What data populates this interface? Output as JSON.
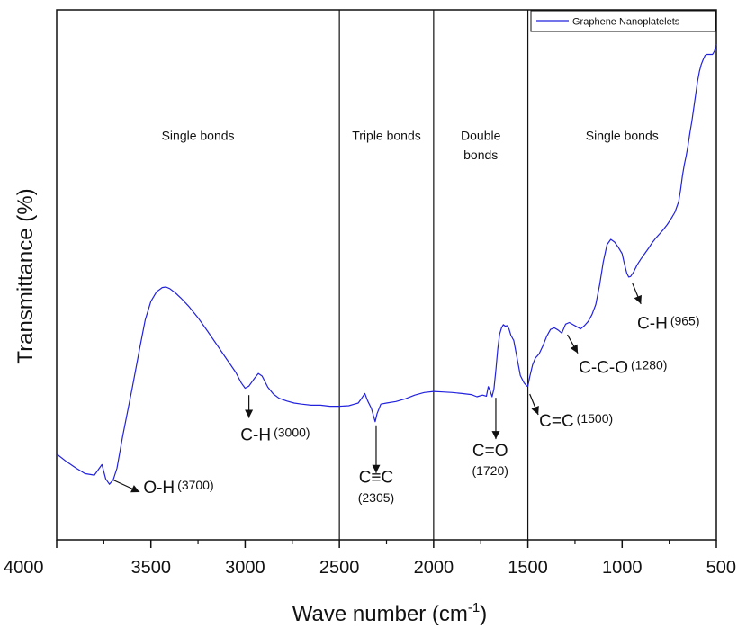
{
  "chart_data": {
    "type": "line",
    "xlabel_main": "Wave number (cm",
    "xlabel_sup": "-1",
    "xlabel_close": ")",
    "ylabel": "Transmittance (%)",
    "xlim": [
      4000,
      500
    ],
    "x_reversed": true,
    "ylim": [
      0,
      100
    ],
    "y_ticks_labeled": false,
    "grid": false,
    "legend_position": "top-right",
    "x_ticks": [
      "4000",
      "3500",
      "3000",
      "2500",
      "2000",
      "1500",
      "1000",
      "500"
    ],
    "series": [
      {
        "name": "Graphene Nanoplatelets",
        "color": "#2222dd",
        "points": [
          [
            4000,
            16.2
          ],
          [
            3950,
            14.8
          ],
          [
            3900,
            13.6
          ],
          [
            3850,
            12.5
          ],
          [
            3800,
            12.2
          ],
          [
            3760,
            14.2
          ],
          [
            3740,
            11.5
          ],
          [
            3720,
            10.5
          ],
          [
            3700,
            11.3
          ],
          [
            3680,
            13.5
          ],
          [
            3650,
            19.5
          ],
          [
            3600,
            28.5
          ],
          [
            3560,
            36.0
          ],
          [
            3530,
            41.5
          ],
          [
            3500,
            45.0
          ],
          [
            3470,
            46.8
          ],
          [
            3440,
            47.6
          ],
          [
            3420,
            47.7
          ],
          [
            3400,
            47.4
          ],
          [
            3370,
            46.6
          ],
          [
            3340,
            45.6
          ],
          [
            3300,
            44.1
          ],
          [
            3250,
            41.9
          ],
          [
            3200,
            39.4
          ],
          [
            3150,
            36.8
          ],
          [
            3100,
            34.2
          ],
          [
            3050,
            31.6
          ],
          [
            3020,
            29.6
          ],
          [
            3000,
            28.6
          ],
          [
            2980,
            29.0
          ],
          [
            2950,
            30.5
          ],
          [
            2930,
            31.4
          ],
          [
            2910,
            30.9
          ],
          [
            2880,
            28.8
          ],
          [
            2850,
            27.5
          ],
          [
            2820,
            26.7
          ],
          [
            2780,
            26.2
          ],
          [
            2740,
            25.8
          ],
          [
            2700,
            25.6
          ],
          [
            2650,
            25.4
          ],
          [
            2600,
            25.4
          ],
          [
            2550,
            25.2
          ],
          [
            2500,
            25.2
          ],
          [
            2450,
            25.3
          ],
          [
            2420,
            25.6
          ],
          [
            2400,
            25.8
          ],
          [
            2380,
            26.8
          ],
          [
            2365,
            27.6
          ],
          [
            2350,
            26.2
          ],
          [
            2330,
            24.8
          ],
          [
            2310,
            22.3
          ],
          [
            2300,
            23.8
          ],
          [
            2280,
            25.6
          ],
          [
            2250,
            25.8
          ],
          [
            2200,
            26.1
          ],
          [
            2150,
            26.6
          ],
          [
            2100,
            27.3
          ],
          [
            2050,
            27.8
          ],
          [
            2000,
            28.0
          ],
          [
            1950,
            27.9
          ],
          [
            1900,
            27.8
          ],
          [
            1850,
            27.6
          ],
          [
            1800,
            27.4
          ],
          [
            1770,
            27.0
          ],
          [
            1740,
            27.3
          ],
          [
            1720,
            27.1
          ],
          [
            1710,
            28.9
          ],
          [
            1700,
            28.1
          ],
          [
            1690,
            27.0
          ],
          [
            1680,
            28.5
          ],
          [
            1670,
            32.0
          ],
          [
            1660,
            36.0
          ],
          [
            1650,
            38.8
          ],
          [
            1640,
            40.0
          ],
          [
            1630,
            40.6
          ],
          [
            1620,
            40.3
          ],
          [
            1610,
            40.4
          ],
          [
            1600,
            39.8
          ],
          [
            1590,
            38.6
          ],
          [
            1575,
            37.6
          ],
          [
            1560,
            34.8
          ],
          [
            1540,
            31.0
          ],
          [
            1520,
            29.6
          ],
          [
            1505,
            29.0
          ],
          [
            1500,
            29.0
          ],
          [
            1490,
            30.8
          ],
          [
            1475,
            33.0
          ],
          [
            1460,
            34.3
          ],
          [
            1440,
            35.1
          ],
          [
            1420,
            36.6
          ],
          [
            1400,
            38.4
          ],
          [
            1380,
            39.7
          ],
          [
            1360,
            40.0
          ],
          [
            1340,
            39.6
          ],
          [
            1320,
            39.0
          ],
          [
            1300,
            40.7
          ],
          [
            1280,
            41.0
          ],
          [
            1260,
            40.6
          ],
          [
            1240,
            40.2
          ],
          [
            1220,
            39.8
          ],
          [
            1200,
            40.4
          ],
          [
            1180,
            41.2
          ],
          [
            1160,
            42.5
          ],
          [
            1140,
            44.4
          ],
          [
            1120,
            48.0
          ],
          [
            1100,
            52.4
          ],
          [
            1080,
            55.7
          ],
          [
            1060,
            56.7
          ],
          [
            1040,
            56.2
          ],
          [
            1020,
            55.2
          ],
          [
            1000,
            54.0
          ],
          [
            990,
            52.4
          ],
          [
            975,
            50.3
          ],
          [
            965,
            49.6
          ],
          [
            955,
            49.7
          ],
          [
            940,
            50.5
          ],
          [
            920,
            51.9
          ],
          [
            900,
            53.0
          ],
          [
            880,
            54.0
          ],
          [
            860,
            55.0
          ],
          [
            840,
            56.1
          ],
          [
            820,
            57.0
          ],
          [
            800,
            57.8
          ],
          [
            780,
            58.6
          ],
          [
            760,
            59.5
          ],
          [
            740,
            60.6
          ],
          [
            720,
            61.8
          ],
          [
            700,
            63.8
          ],
          [
            690,
            66.0
          ],
          [
            680,
            68.7
          ],
          [
            670,
            70.8
          ],
          [
            660,
            72.5
          ],
          [
            650,
            74.5
          ],
          [
            640,
            76.9
          ],
          [
            630,
            79.0
          ],
          [
            620,
            81.5
          ],
          [
            610,
            84.0
          ],
          [
            600,
            86.5
          ],
          [
            590,
            88.4
          ],
          [
            580,
            89.7
          ],
          [
            570,
            90.6
          ],
          [
            560,
            91.4
          ],
          [
            550,
            91.6
          ],
          [
            540,
            91.6
          ],
          [
            530,
            91.6
          ],
          [
            520,
            91.6
          ],
          [
            510,
            92.2
          ],
          [
            500,
            93.5
          ]
        ]
      }
    ],
    "region_boundaries": [
      2500,
      2000,
      1500
    ],
    "region_labels": [
      {
        "text": "Single bonds",
        "x": 3250,
        "y": 75.5
      },
      {
        "text": "Triple bonds",
        "x": 2250,
        "y": 75.5
      },
      {
        "text": "Double",
        "x": 1750,
        "y": 75.5
      },
      {
        "text": "bonds",
        "x": 1750,
        "y": 71.8
      },
      {
        "text": "Single bonds",
        "x": 1000,
        "y": 75.5
      }
    ],
    "annotations": [
      {
        "group": "O-H (3700)",
        "bond": "O-H",
        "wavenumber": "(3700)",
        "peak_x": 3700,
        "peak_y": 11.3,
        "arrow_to_x": 3560,
        "arrow_to_y": 9.0,
        "label_x": 3540,
        "label_y": 8.8,
        "align": "left"
      },
      {
        "group": "C-H (3000)",
        "bond": "C-H",
        "wavenumber": "(3000)",
        "peak_x": 2980,
        "peak_y": 27.3,
        "arrow_to_x": 2980,
        "arrow_to_y": 23.0,
        "label_x": 2840,
        "label_y": 18.8,
        "align": "mid"
      },
      {
        "group": "C≡C (2305)",
        "bond": "C≡C",
        "wavenumber": "(2305)",
        "peak_x": 2305,
        "peak_y": 21.6,
        "arrow_to_x": 2305,
        "arrow_to_y": 12.6,
        "label_x": 2305,
        "label_y": 10.8,
        "sub_y": 7.1,
        "align": "center"
      },
      {
        "group": "C=O (1720)",
        "bond": "C=O",
        "wavenumber": "(1720)",
        "peak_x": 1670,
        "peak_y": 26.8,
        "arrow_to_x": 1670,
        "arrow_to_y": 19.0,
        "label_x": 1700,
        "label_y": 15.8,
        "sub_y": 12.2,
        "align": "center"
      },
      {
        "group": "C=C (1500)",
        "bond": "C=C",
        "wavenumber": "(1500)",
        "peak_x": 1490,
        "peak_y": 27.5,
        "arrow_to_x": 1445,
        "arrow_to_y": 23.6,
        "label_x": 1440,
        "label_y": 21.4,
        "align": "left"
      },
      {
        "group": "C-C-O (1280)",
        "bond": "C-C-O",
        "wavenumber": "(1280)",
        "peak_x": 1290,
        "peak_y": 38.7,
        "arrow_to_x": 1235,
        "arrow_to_y": 35.2,
        "label_x": 1230,
        "label_y": 31.5,
        "align": "left"
      },
      {
        "group": "C-H (965)",
        "bond": "C-H",
        "wavenumber": "(965)",
        "peak_x": 945,
        "peak_y": 48.4,
        "arrow_to_x": 900,
        "arrow_to_y": 44.5,
        "label_x": 920,
        "label_y": 39.8,
        "align": "left"
      }
    ]
  }
}
